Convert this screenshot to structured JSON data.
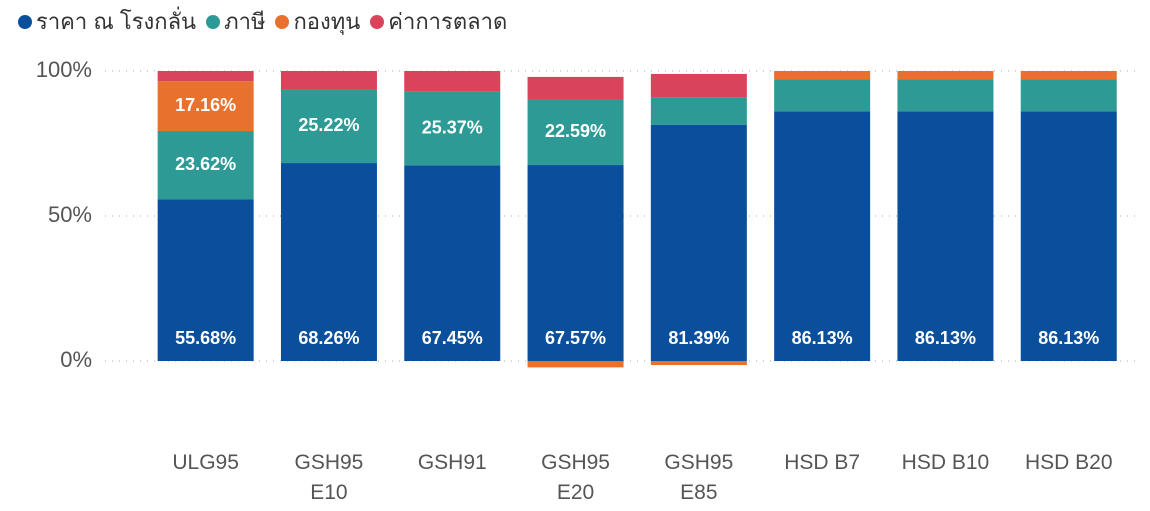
{
  "chart_data": {
    "type": "stacked_bar",
    "categories": [
      "ULG95",
      "GSH95 E10",
      "GSH91",
      "GSH95 E20",
      "GSH95 E85",
      "HSD B7",
      "HSD B10",
      "HSD B20"
    ],
    "series": [
      {
        "name": "ราคา ณ โรงกลั่น",
        "color": "#0a4f9c",
        "values": [
          55.68,
          68.26,
          67.45,
          67.57,
          81.39,
          86.13,
          86.13,
          86.13
        ],
        "value_labels": [
          "55.68%",
          "68.26%",
          "67.45%",
          "67.57%",
          "81.39%",
          "86.13%",
          "86.13%",
          "86.13%"
        ]
      },
      {
        "name": "ภาษี",
        "color": "#2e9a96",
        "values": [
          23.62,
          25.22,
          25.37,
          22.59,
          9.6,
          11.07,
          11.07,
          11.07
        ],
        "value_labels": [
          "23.62%",
          "25.22%",
          "25.37%",
          "22.59%",
          null,
          null,
          null,
          null
        ]
      },
      {
        "name": "กองทุน",
        "color": "#e8712d",
        "values": [
          17.16,
          0,
          0,
          -2.2,
          -1.4,
          2.8,
          2.8,
          2.8
        ],
        "value_labels": [
          "17.16%",
          null,
          null,
          null,
          null,
          null,
          null,
          null
        ]
      },
      {
        "name": "ค่าการตลาด",
        "color": "#d9445a",
        "values": [
          3.54,
          6.52,
          7.18,
          7.8,
          8.0,
          0,
          0,
          0
        ]
      }
    ],
    "ylim": [
      0,
      100
    ],
    "yticks": [
      {
        "value": 0,
        "label": "0%"
      },
      {
        "value": 50,
        "label": "50%"
      },
      {
        "value": 100,
        "label": "100%"
      }
    ],
    "grid": true,
    "legend": "top-left"
  }
}
